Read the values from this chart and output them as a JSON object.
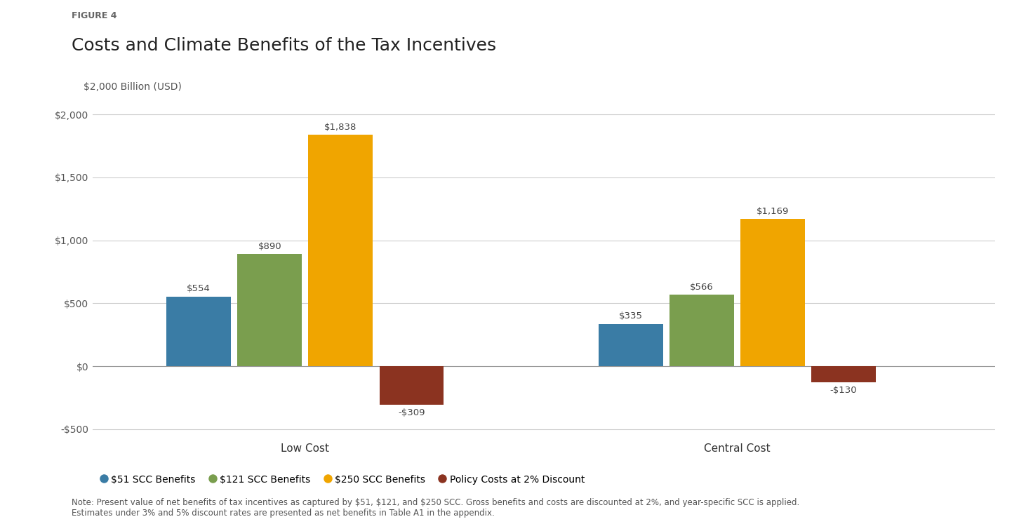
{
  "figure_label": "FIGURE 4",
  "title": "Costs and Climate Benefits of the Tax Incentives",
  "ylabel": "$2,000 Billion (USD)",
  "groups": [
    "Low Cost",
    "Central Cost"
  ],
  "series": [
    {
      "label": "$51 SCC Benefits",
      "color": "#3a7ca5",
      "values": [
        554,
        335
      ]
    },
    {
      "label": "$121 SCC Benefits",
      "color": "#7a9e4e",
      "values": [
        890,
        566
      ]
    },
    {
      "label": "$250 SCC Benefits",
      "color": "#f0a500",
      "values": [
        1838,
        1169
      ]
    },
    {
      "label": "Policy Costs at 2% Discount",
      "color": "#8b3320",
      "values": [
        -309,
        -130
      ]
    }
  ],
  "bar_width": 0.1,
  "bar_gap": 0.01,
  "group_centers": [
    0.38,
    1.05
  ],
  "xlim": [
    0.05,
    1.45
  ],
  "ylim": [
    -550,
    2150
  ],
  "yticks": [
    -500,
    0,
    500,
    1000,
    1500,
    2000
  ],
  "ytick_labels": [
    "-$500",
    "$0",
    "$500",
    "$1,000",
    "$1,500",
    "$2,000"
  ],
  "background_color": "#ffffff",
  "grid_color": "#cccccc",
  "note": "Note: Present value of net benefits of tax incentives as captured by $51, $121, and $250 SCC. Gross benefits and costs are discounted at 2%, and year-specific SCC is applied.\nEstimates under 3% and 5% discount rates are presented as net benefits in Table A1 in the appendix.",
  "bar_label_fontsize": 9.5,
  "axis_label_fontsize": 10,
  "title_fontsize": 18,
  "figure_label_fontsize": 9,
  "note_fontsize": 8.5,
  "legend_fontsize": 10,
  "group_label_fontsize": 11,
  "ylabel_fontsize": 10
}
